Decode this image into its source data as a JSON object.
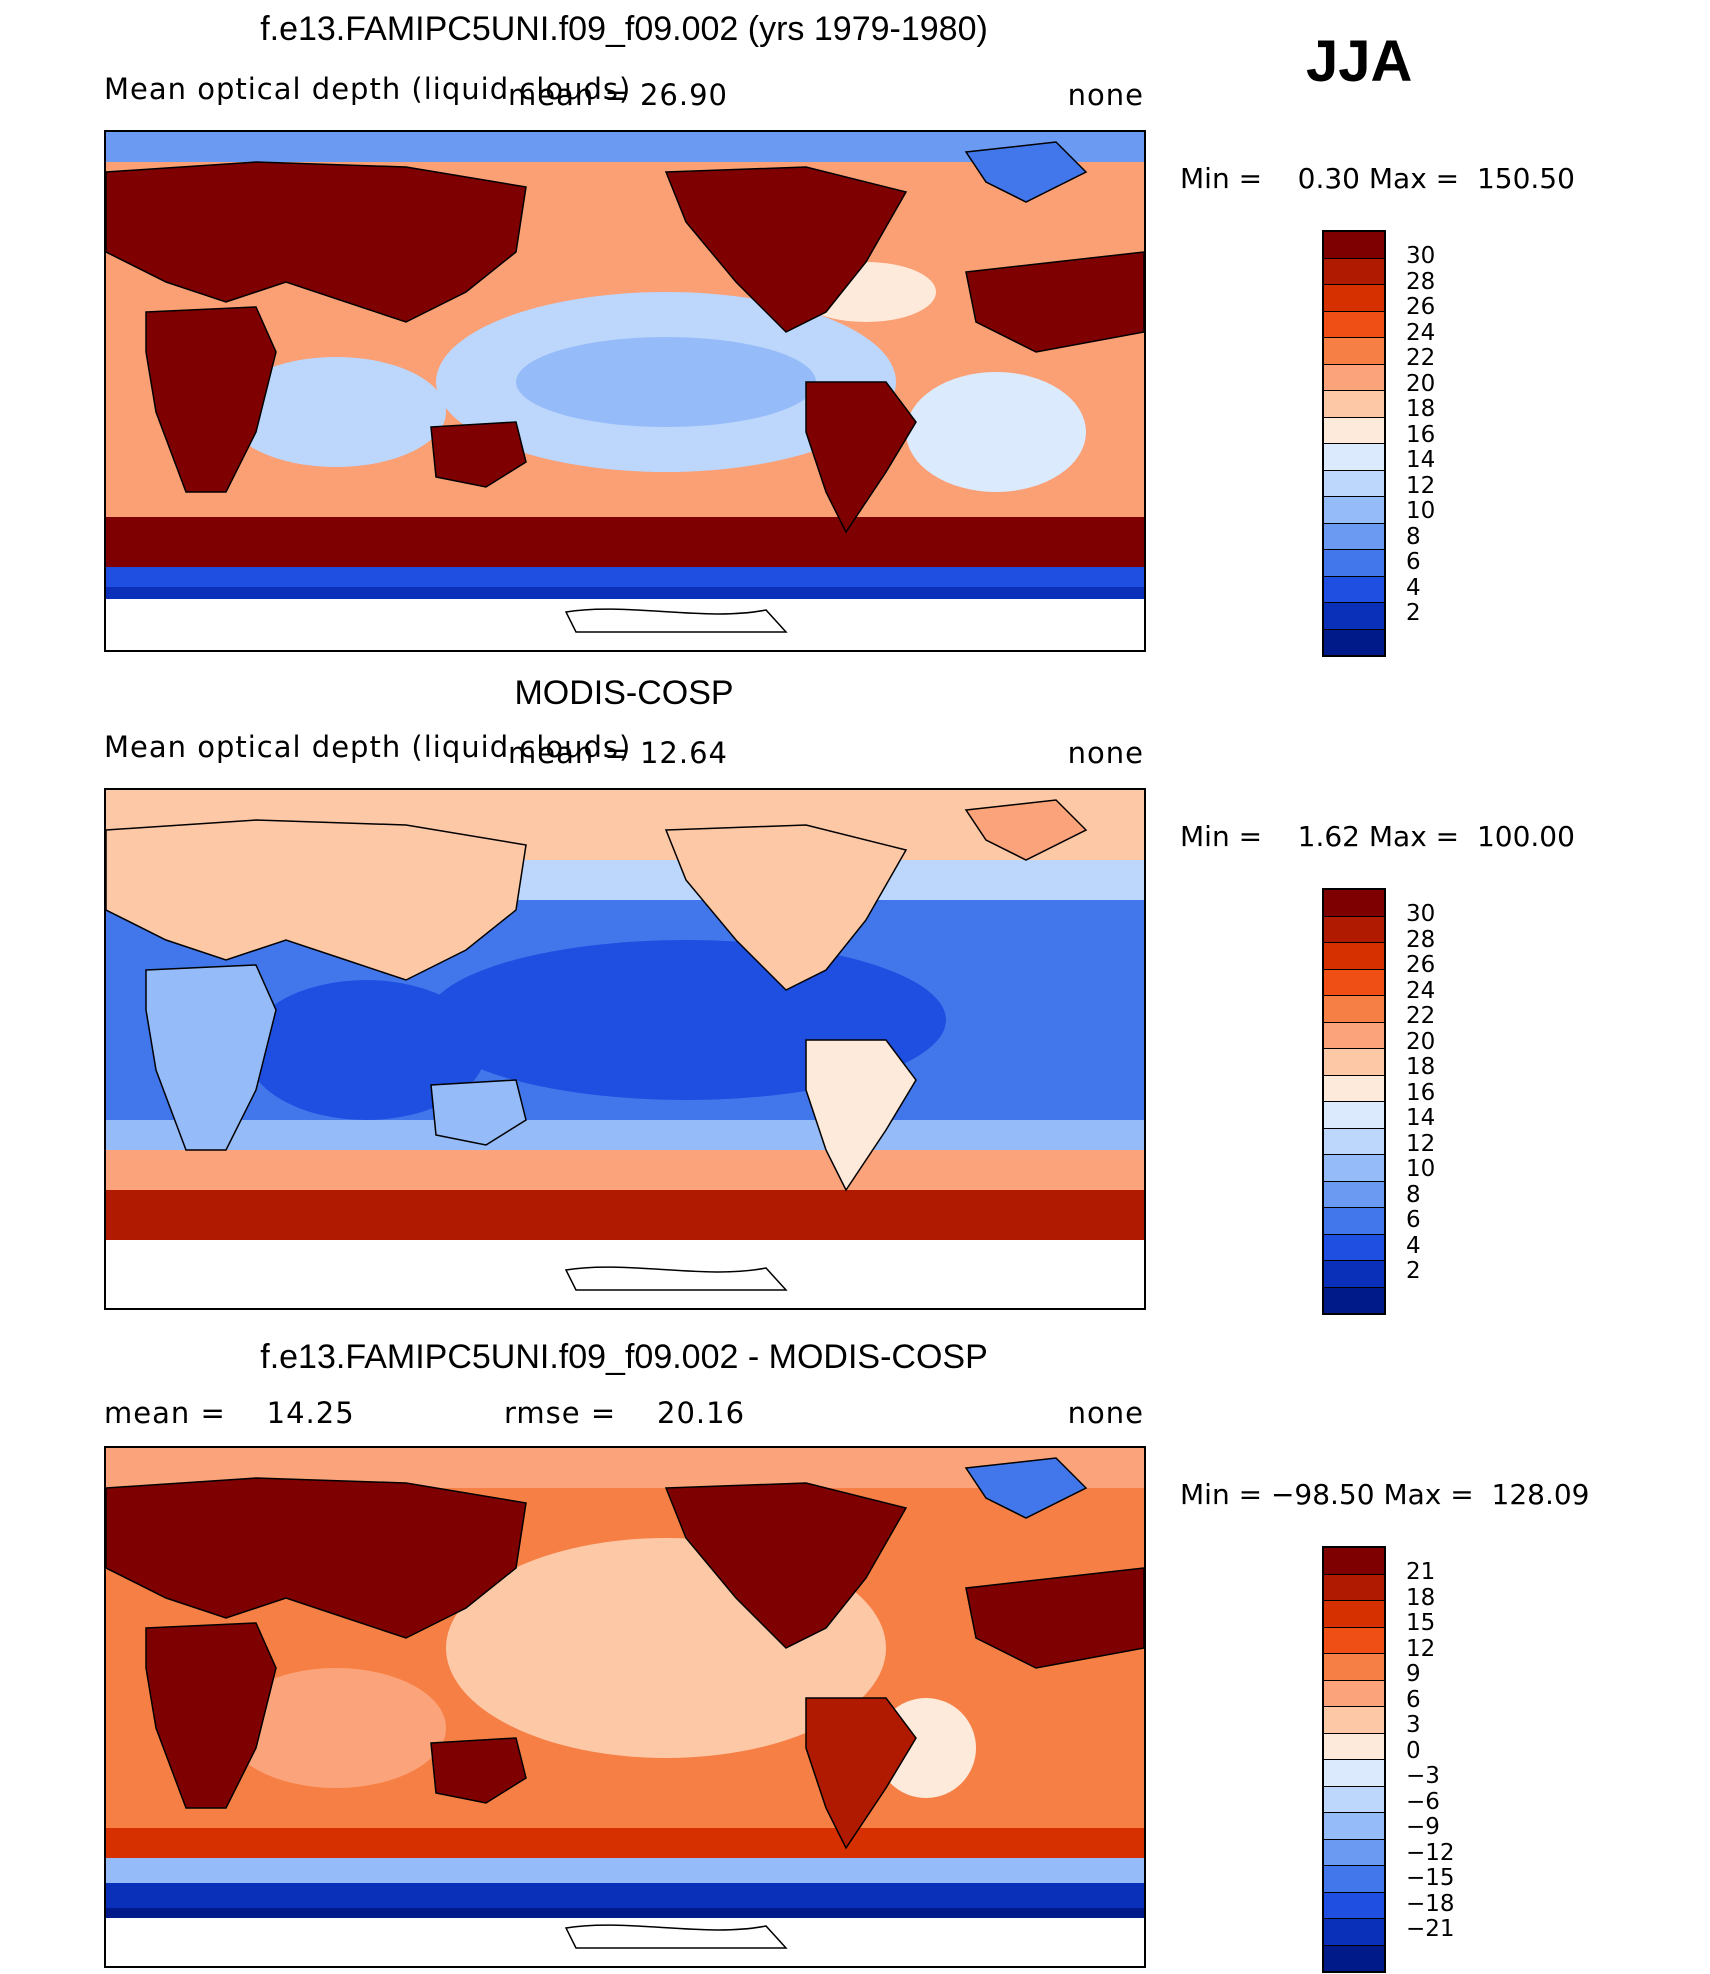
{
  "season": "JJA",
  "panels": [
    {
      "title": "f.e13.FAMIPC5UNI.f09_f09.002 (yrs 1979-1980)",
      "left_label": "Mean optical depth (liquid clouds)",
      "mid_label": "mean =  26.90",
      "right_label": "none",
      "minmax": "Min =    0.30 Max =  150.50",
      "levels": [
        "30",
        "28",
        "26",
        "24",
        "22",
        "20",
        "18",
        "16",
        "14",
        "12",
        "10",
        "8",
        "6",
        "4",
        "2"
      ]
    },
    {
      "title": "MODIS-COSP",
      "left_label": "Mean optical depth (liquid clouds)",
      "mid_label": "mean =  12.64",
      "right_label": "none",
      "minmax": "Min =    1.62 Max =  100.00",
      "levels": [
        "30",
        "28",
        "26",
        "24",
        "22",
        "20",
        "18",
        "16",
        "14",
        "12",
        "10",
        "8",
        "6",
        "4",
        "2"
      ]
    },
    {
      "title": "f.e13.FAMIPC5UNI.f09_f09.002 - MODIS-COSP",
      "left_label": "mean =    14.25",
      "mid_label": "rmse =    20.16",
      "right_label": "none",
      "minmax": "Min = −98.50 Max =  128.09",
      "levels": [
        "21",
        "18",
        "15",
        "12",
        "9",
        "6",
        "3",
        "0",
        "−3",
        "−6",
        "−9",
        "−12",
        "−15",
        "−18",
        "−21"
      ]
    }
  ],
  "colors": {
    "palette": [
      "#7f0000",
      "#b01a00",
      "#d63000",
      "#ef4f14",
      "#f67f45",
      "#fba37a",
      "#fdc8a6",
      "#feeadb",
      "#dbeafd",
      "#bcd6fc",
      "#95bbf9",
      "#6b9af3",
      "#4277ec",
      "#1e4fe0",
      "#0a2fb8",
      "#001a8a"
    ]
  }
}
